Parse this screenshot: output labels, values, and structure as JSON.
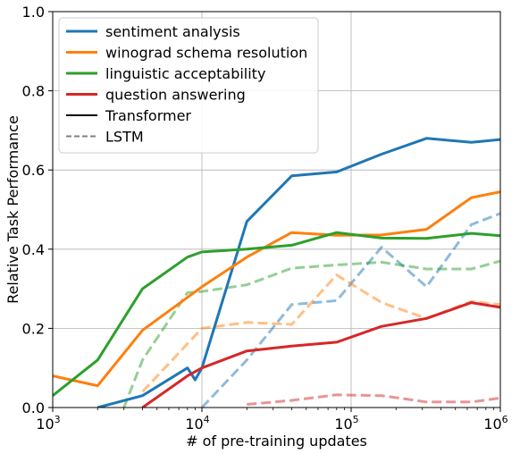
{
  "chart_data": {
    "type": "line",
    "title": "",
    "xlabel": "# of pre-training updates",
    "ylabel": "Relative Task Performance",
    "xscale": "log",
    "xlim": [
      1000,
      1000000
    ],
    "ylim": [
      0,
      1.0
    ],
    "grid": true,
    "legend_position": "top-left",
    "x_ticks": [
      {
        "value": 1000,
        "base": "10",
        "exp": "3"
      },
      {
        "value": 10000,
        "base": "10",
        "exp": "4"
      },
      {
        "value": 100000,
        "base": "10",
        "exp": "5"
      },
      {
        "value": 1000000,
        "base": "10",
        "exp": "6"
      }
    ],
    "y_ticks": [
      {
        "value": 0,
        "label": "0.0"
      },
      {
        "value": 0.2,
        "label": "0.2"
      },
      {
        "value": 0.4,
        "label": "0.4"
      },
      {
        "value": 0.6,
        "label": "0.6"
      },
      {
        "value": 0.8,
        "label": "0.8"
      },
      {
        "value": 1.0,
        "label": "1.0"
      }
    ],
    "legend": [
      {
        "label": "sentiment analysis",
        "color": "#1f77b4",
        "style": "solid"
      },
      {
        "label": "winograd schema resolution",
        "color": "#ff7f0e",
        "style": "solid"
      },
      {
        "label": "linguistic acceptability",
        "color": "#2ca02c",
        "style": "solid"
      },
      {
        "label": "question answering",
        "color": "#d62728",
        "style": "solid"
      },
      {
        "label": "Transformer",
        "color": "#000000",
        "style": "solid"
      },
      {
        "label": "LSTM",
        "color": "#808080",
        "style": "dashed"
      }
    ],
    "series": [
      {
        "task": "sentiment analysis",
        "model": "Transformer",
        "color": "#1f77b4",
        "style": "solid",
        "x": [
          2000,
          4000,
          8000,
          9000,
          10000,
          20000,
          40000,
          80000,
          160000,
          320000,
          640000,
          1000000
        ],
        "y": [
          0.0,
          0.03,
          0.1,
          0.07,
          0.1,
          0.47,
          0.585,
          0.595,
          0.64,
          0.68,
          0.67,
          0.677
        ]
      },
      {
        "task": "winograd schema resolution",
        "model": "Transformer",
        "color": "#ff7f0e",
        "style": "solid",
        "x": [
          1000,
          2000,
          4000,
          10000,
          20000,
          40000,
          80000,
          160000,
          320000,
          640000,
          1000000
        ],
        "y": [
          0.08,
          0.055,
          0.195,
          0.305,
          0.38,
          0.442,
          0.435,
          0.436,
          0.45,
          0.53,
          0.545
        ]
      },
      {
        "task": "linguistic acceptability",
        "model": "Transformer",
        "color": "#2ca02c",
        "style": "solid",
        "x": [
          1000,
          2000,
          4000,
          8000,
          10000,
          20000,
          40000,
          80000,
          160000,
          320000,
          640000,
          1000000
        ],
        "y": [
          0.03,
          0.12,
          0.3,
          0.38,
          0.393,
          0.4,
          0.41,
          0.442,
          0.428,
          0.427,
          0.44,
          0.434
        ]
      },
      {
        "task": "question answering",
        "model": "Transformer",
        "color": "#d62728",
        "style": "solid",
        "x": [
          4000,
          8000,
          10000,
          20000,
          40000,
          80000,
          160000,
          320000,
          640000,
          1000000
        ],
        "y": [
          0.0,
          0.08,
          0.1,
          0.143,
          0.155,
          0.165,
          0.205,
          0.225,
          0.265,
          0.253
        ]
      },
      {
        "task": "sentiment analysis",
        "model": "LSTM",
        "color": "#1f77b4",
        "style": "dashed",
        "x": [
          10000,
          20000,
          40000,
          80000,
          160000,
          320000,
          640000,
          1000000
        ],
        "y": [
          0.0,
          0.12,
          0.26,
          0.27,
          0.405,
          0.305,
          0.462,
          0.49
        ]
      },
      {
        "task": "winograd schema resolution",
        "model": "LSTM",
        "color": "#ff7f0e",
        "style": "dashed",
        "x": [
          4000,
          10000,
          20000,
          40000,
          80000,
          160000,
          320000,
          640000,
          1000000
        ],
        "y": [
          0.04,
          0.2,
          0.215,
          0.21,
          0.335,
          0.265,
          0.225,
          0.268,
          0.26
        ]
      },
      {
        "task": "linguistic acceptability",
        "model": "LSTM",
        "color": "#2ca02c",
        "style": "dashed",
        "x": [
          3000,
          4000,
          8000,
          10000,
          20000,
          40000,
          80000,
          160000,
          320000,
          640000,
          1000000
        ],
        "y": [
          0.0,
          0.12,
          0.29,
          0.293,
          0.31,
          0.352,
          0.36,
          0.367,
          0.35,
          0.35,
          0.37
        ]
      },
      {
        "task": "question answering",
        "model": "LSTM",
        "color": "#d62728",
        "style": "dashed",
        "x": [
          20000,
          40000,
          80000,
          160000,
          320000,
          640000,
          1000000
        ],
        "y": [
          0.008,
          0.018,
          0.032,
          0.03,
          0.014,
          0.014,
          0.024
        ]
      }
    ]
  }
}
